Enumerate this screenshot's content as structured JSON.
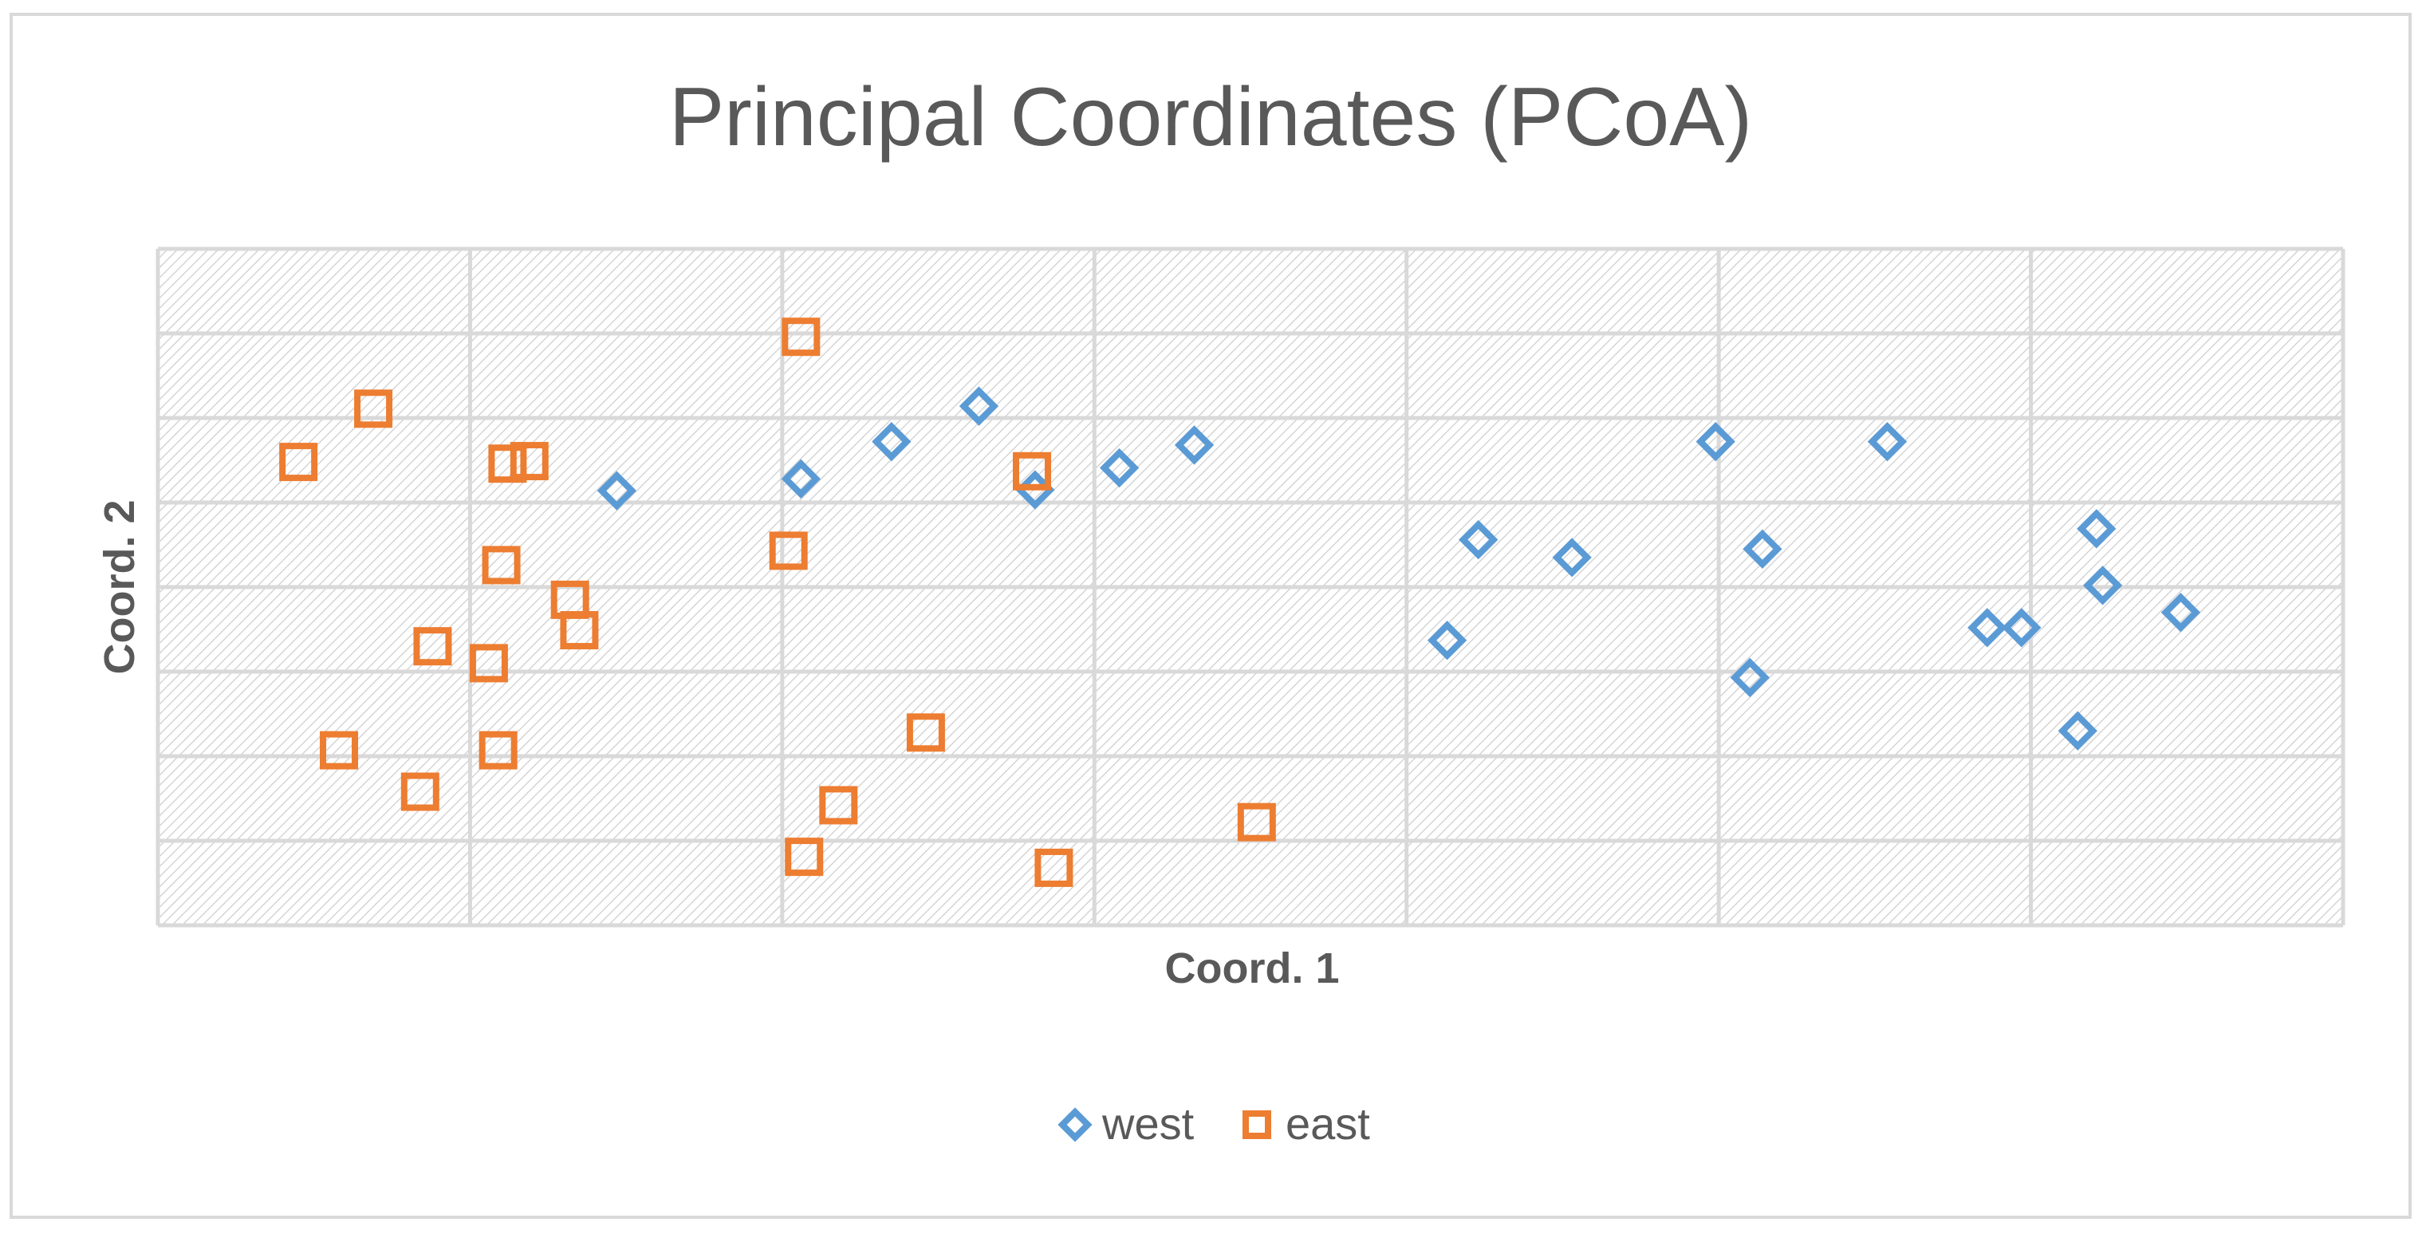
{
  "chart_data": {
    "type": "scatter",
    "title": "Principal Coordinates (PCoA)",
    "xlabel": "Coord. 1",
    "ylabel": "Coord. 2",
    "xlim": [
      0,
      7
    ],
    "ylim": [
      0,
      8
    ],
    "grid": true,
    "legend_position": "bottom",
    "colors": {
      "west": "#5b9bd5",
      "east": "#ed7d31",
      "grid": "#d9d9d9",
      "text": "#595959",
      "frame": "#d9d9d9"
    },
    "series": [
      {
        "name": "west",
        "marker": "diamond",
        "points": [
          {
            "x": 1.47,
            "y": 5.14
          },
          {
            "x": 2.06,
            "y": 5.28
          },
          {
            "x": 2.35,
            "y": 5.72
          },
          {
            "x": 2.63,
            "y": 6.14
          },
          {
            "x": 2.81,
            "y": 5.15
          },
          {
            "x": 3.08,
            "y": 5.41
          },
          {
            "x": 3.32,
            "y": 5.68
          },
          {
            "x": 4.13,
            "y": 3.37
          },
          {
            "x": 4.23,
            "y": 4.56
          },
          {
            "x": 4.53,
            "y": 4.35
          },
          {
            "x": 4.99,
            "y": 5.72
          },
          {
            "x": 5.1,
            "y": 2.93
          },
          {
            "x": 5.14,
            "y": 4.45
          },
          {
            "x": 5.54,
            "y": 5.72
          },
          {
            "x": 5.86,
            "y": 3.52
          },
          {
            "x": 5.97,
            "y": 3.52
          },
          {
            "x": 6.15,
            "y": 2.3
          },
          {
            "x": 6.21,
            "y": 4.69
          },
          {
            "x": 6.23,
            "y": 4.02
          },
          {
            "x": 6.48,
            "y": 3.7
          }
        ]
      },
      {
        "name": "east",
        "marker": "square",
        "points": [
          {
            "x": 0.45,
            "y": 5.48
          },
          {
            "x": 0.58,
            "y": 2.07
          },
          {
            "x": 0.69,
            "y": 6.11
          },
          {
            "x": 0.84,
            "y": 1.58
          },
          {
            "x": 0.88,
            "y": 3.3
          },
          {
            "x": 1.06,
            "y": 3.1
          },
          {
            "x": 1.09,
            "y": 2.07
          },
          {
            "x": 1.1,
            "y": 4.26
          },
          {
            "x": 1.12,
            "y": 5.46
          },
          {
            "x": 1.19,
            "y": 5.49
          },
          {
            "x": 1.32,
            "y": 3.85
          },
          {
            "x": 1.35,
            "y": 3.49
          },
          {
            "x": 2.02,
            "y": 4.43
          },
          {
            "x": 2.06,
            "y": 6.96
          },
          {
            "x": 2.07,
            "y": 0.81
          },
          {
            "x": 2.18,
            "y": 1.42
          },
          {
            "x": 2.46,
            "y": 2.28
          },
          {
            "x": 2.8,
            "y": 5.37
          },
          {
            "x": 2.87,
            "y": 0.68
          },
          {
            "x": 3.52,
            "y": 1.22
          }
        ]
      }
    ]
  }
}
